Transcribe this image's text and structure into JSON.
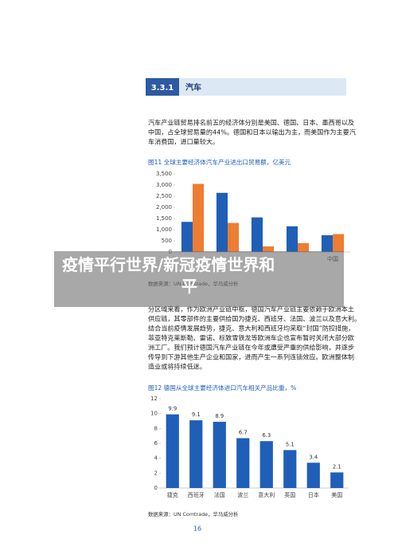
{
  "header": {
    "number": "3.3.1",
    "title": "汽车"
  },
  "paragraph1": [
    "汽车产业链贸易排名前五的经济体分别是美国、德国、日本、墨西哥以及",
    "中国，占全球贸易量的44%。德国和日本以输出为主，而美国作为主要汽",
    "车消费国，进口量较大。"
  ],
  "figure1": {
    "caption": "图11 全球主要经济体汽车产业进出口贸易额，亿美元",
    "source": "数据来源：UN Comtrade，华马威分析",
    "chart_data": {
      "type": "bar",
      "categories": [
        null,
        null,
        null,
        null,
        "中国"
      ],
      "series": [
        {
          "color": "#1f5fb8",
          "values": [
            1350,
            2650,
            1550,
            1150,
            750
          ]
        },
        {
          "color": "#ed7d31",
          "values": [
            3050,
            1300,
            250,
            400,
            800
          ]
        }
      ],
      "ylim": [
        0,
        3500
      ],
      "yticks": [
        0,
        {
          "value": 500,
          "label": "500"
        },
        {
          "value": 1000,
          "label": "1,000"
        },
        {
          "value": 1500,
          "label": "1,500"
        },
        {
          "value": 2000,
          "label": "2,000"
        },
        {
          "value": 2500,
          "label": "2,500"
        },
        {
          "value": 3000,
          "label": "3,000"
        },
        {
          "value": 3500,
          "label": "3,500"
        }
      ]
    }
  },
  "paragraph2": [
    "分区域来看，作为欧洲产业链中枢，德国汽车产业链主要依赖于欧洲本土",
    "供应链，其零部件的主要供给国为捷克、西班牙、法国、波兰以及意大利。",
    "结合当前疫情发展趋势，捷克、意大利和西班牙均采取“封国”防控措施，",
    "菲亚特克莱斯勒、雷诺、标致雪铁龙等欧洲车企也宣布暂时关闭大部分欧",
    "洲工厂。我们预计德国汽车产业链在今年或遭受严重的供给影响，并逐步",
    "传导到下游其他生产企业和国家，进而产生一系列连锁效应。欧洲整体制",
    "造业或将持续低迷。"
  ],
  "figure2": {
    "caption": "图12 德国从全球主要经济体进口汽车相关产品比重，%",
    "source": "数据来源：UN Comtrade，华马威分析",
    "chart_data": {
      "type": "bar",
      "categories": [
        "捷克",
        "西班牙",
        "法国",
        "波兰",
        "意大利",
        "英国",
        "日本",
        "美国"
      ],
      "values": [
        9.9,
        9.1,
        8.9,
        6.7,
        6.3,
        5.1,
        3.4,
        2.1
      ],
      "color": "#1f5fb8",
      "ylim": [
        0,
        12
      ],
      "yticks": [
        0,
        2,
        4,
        6,
        8,
        10,
        12
      ]
    }
  },
  "page_number": "16",
  "overlay_title": "疫情平行世界/新冠疫情世界和平"
}
